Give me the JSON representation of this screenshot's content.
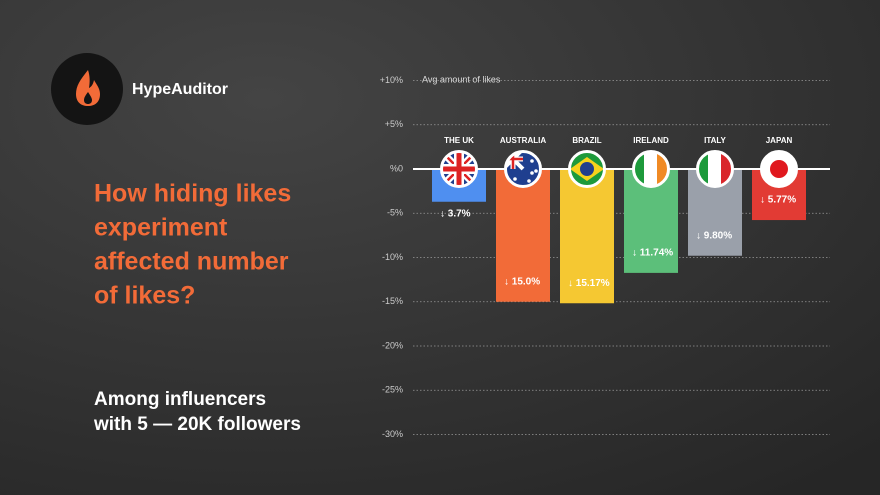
{
  "page": {
    "brand": "HypeAuditor",
    "headline": [
      "How hiding likes",
      "experiment",
      "affected number",
      "of likes?"
    ],
    "subtitle": [
      "Among influencers",
      "with 5 — 20K followers"
    ]
  },
  "chart_data": {
    "type": "bar",
    "ylabel": "Avg amount of likes",
    "categories": [
      "THE UK",
      "AUSTRALIA",
      "BRAZIL",
      "IRELAND",
      "ITALY",
      "JAPAN"
    ],
    "values": [
      -3.7,
      -15.0,
      -15.17,
      -11.74,
      -9.8,
      -5.77
    ],
    "value_labels": [
      "↓ 3.7%",
      "↓ 15.0%",
      "↓ 15.17%",
      "↓ 11.74%",
      "↓ 9.80%",
      "↓ 5.77%"
    ],
    "colors": [
      "#4f8ff0",
      "#f26b38",
      "#f5c832",
      "#5cbf7a",
      "#9aa0aa",
      "#e23b34"
    ],
    "ylim": [
      -30,
      10
    ],
    "yticks": [
      {
        "value": 10,
        "label": "+10%"
      },
      {
        "value": 5,
        "label": "+5%"
      },
      {
        "value": 0,
        "label": "%0"
      },
      {
        "value": -5,
        "label": "-5%"
      },
      {
        "value": -10,
        "label": "-10%"
      },
      {
        "value": -15,
        "label": "-15%"
      },
      {
        "value": -20,
        "label": "-20%"
      },
      {
        "value": -25,
        "label": "-25%"
      },
      {
        "value": -30,
        "label": "-30%"
      }
    ],
    "grid": true
  }
}
